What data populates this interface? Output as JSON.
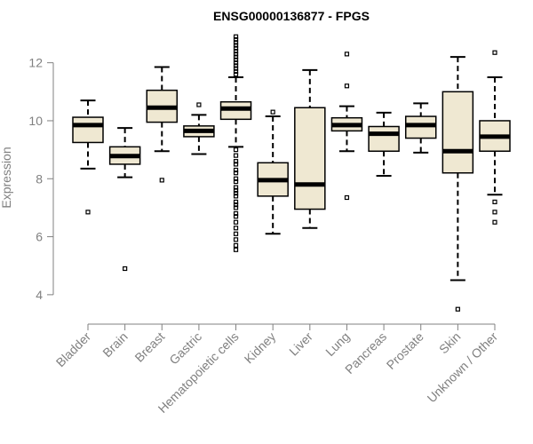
{
  "chart_data": {
    "type": "boxplot",
    "title": "ENSG00000136877 - FPGS",
    "xlabel": "",
    "ylabel": "Expression",
    "ylim": [
      3.2,
      13.0
    ],
    "yticks": [
      4,
      6,
      8,
      10,
      12
    ],
    "grid": false,
    "colors": {
      "box_fill": "#EFE8D2",
      "stroke": "#000000",
      "axis": "#808080"
    },
    "categories": [
      "Bladder",
      "Brain",
      "Breast",
      "Gastric",
      "Hematopoietic cells",
      "Kidney",
      "Liver",
      "Lung",
      "Pancreas",
      "Prostate",
      "Skin",
      "Unknown / Other"
    ],
    "boxes": [
      {
        "category": "Bladder",
        "whisker_low": 8.35,
        "q1": 9.25,
        "median": 9.85,
        "q3": 10.12,
        "whisker_high": 10.7,
        "outliers": [
          6.85
        ]
      },
      {
        "category": "Brain",
        "whisker_low": 8.05,
        "q1": 8.5,
        "median": 8.78,
        "q3": 9.1,
        "whisker_high": 9.75,
        "outliers": [
          4.9
        ]
      },
      {
        "category": "Breast",
        "whisker_low": 8.95,
        "q1": 9.95,
        "median": 10.45,
        "q3": 11.05,
        "whisker_high": 11.85,
        "outliers": [
          7.95
        ]
      },
      {
        "category": "Gastric",
        "whisker_low": 8.85,
        "q1": 9.45,
        "median": 9.65,
        "q3": 9.82,
        "whisker_high": 10.2,
        "outliers": [
          10.55
        ]
      },
      {
        "category": "Hematopoietic cells",
        "whisker_low": 9.1,
        "q1": 10.05,
        "median": 10.42,
        "q3": 10.65,
        "whisker_high": 11.5,
        "outliers": [
          11.6,
          11.7,
          11.8,
          11.9,
          12.0,
          12.1,
          12.2,
          12.3,
          12.4,
          12.5,
          12.6,
          12.7,
          12.8,
          12.9,
          9.0,
          8.8,
          8.6,
          8.5,
          8.3,
          8.2,
          8.0,
          7.9,
          7.7,
          7.6,
          7.5,
          7.4,
          7.2,
          7.1,
          7.0,
          6.8,
          6.7,
          6.5,
          6.3,
          6.1,
          5.9,
          5.7,
          5.55
        ]
      },
      {
        "category": "Kidney",
        "whisker_low": 6.1,
        "q1": 7.4,
        "median": 7.95,
        "q3": 8.55,
        "whisker_high": 10.15,
        "outliers": [
          10.3
        ]
      },
      {
        "category": "Liver",
        "whisker_low": 6.3,
        "q1": 6.95,
        "median": 7.8,
        "q3": 10.45,
        "whisker_high": 11.75,
        "outliers": []
      },
      {
        "category": "Lung",
        "whisker_low": 8.95,
        "q1": 9.65,
        "median": 9.85,
        "q3": 10.1,
        "whisker_high": 10.5,
        "outliers": [
          12.3,
          11.2,
          7.35
        ]
      },
      {
        "category": "Pancreas",
        "whisker_low": 8.1,
        "q1": 8.95,
        "median": 9.55,
        "q3": 9.8,
        "whisker_high": 10.28,
        "outliers": []
      },
      {
        "category": "Prostate",
        "whisker_low": 8.9,
        "q1": 9.4,
        "median": 9.85,
        "q3": 10.15,
        "whisker_high": 10.6,
        "outliers": []
      },
      {
        "category": "Skin",
        "whisker_low": 4.5,
        "q1": 8.2,
        "median": 8.95,
        "q3": 11.0,
        "whisker_high": 12.2,
        "outliers": [
          3.5
        ]
      },
      {
        "category": "Unknown / Other",
        "whisker_low": 7.45,
        "q1": 8.95,
        "median": 9.45,
        "q3": 10.0,
        "whisker_high": 11.5,
        "outliers": [
          12.35,
          7.2,
          6.85,
          6.5
        ]
      }
    ]
  }
}
